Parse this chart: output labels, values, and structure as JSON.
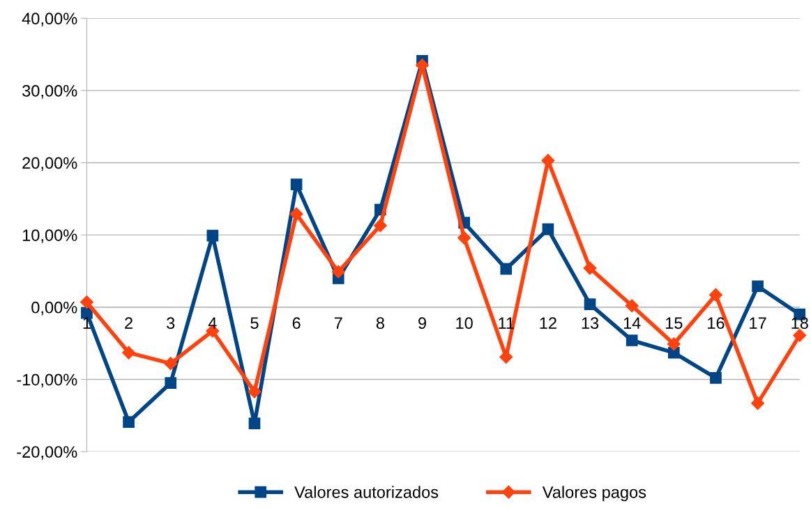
{
  "chart_data": {
    "type": "line",
    "categories": [
      "1",
      "2",
      "3",
      "4",
      "5",
      "6",
      "7",
      "8",
      "9",
      "10",
      "11",
      "12",
      "13",
      "14",
      "15",
      "16",
      "17",
      "18"
    ],
    "series": [
      {
        "name": "Valores autorizados",
        "color": "#004586",
        "marker": "square",
        "values": [
          -0.8,
          -15.9,
          -10.5,
          9.9,
          -16.1,
          17.0,
          4.0,
          13.5,
          34.1,
          11.7,
          5.3,
          10.8,
          0.4,
          -4.6,
          -6.3,
          -9.8,
          2.9,
          -1.0
        ]
      },
      {
        "name": "Valores pagos",
        "color": "#ff420e",
        "marker": "diamond",
        "values": [
          0.7,
          -6.3,
          -7.8,
          -3.3,
          -11.7,
          12.9,
          4.9,
          11.3,
          33.5,
          9.6,
          -6.9,
          20.3,
          5.4,
          0.2,
          -5.1,
          1.7,
          -13.3,
          -3.9
        ]
      }
    ],
    "ylim": [
      -20,
      40
    ],
    "yticks": [
      {
        "value": -20,
        "label": "-20,00%"
      },
      {
        "value": -10,
        "label": "-10,00%"
      },
      {
        "value": 0,
        "label": "0,00%"
      },
      {
        "value": 10,
        "label": "10,00%"
      },
      {
        "value": 20,
        "label": "20,00%"
      },
      {
        "value": 30,
        "label": "30,00%"
      },
      {
        "value": 40,
        "label": "40,00%"
      }
    ],
    "grid": "y",
    "legend": "bottom",
    "line_style": "solid"
  }
}
